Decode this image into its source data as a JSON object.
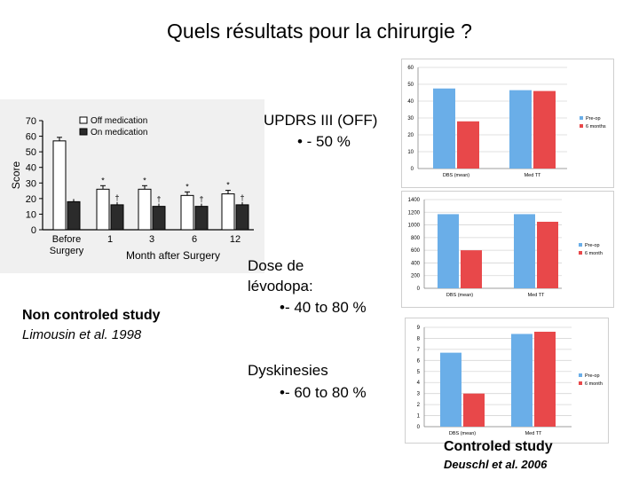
{
  "slide": {
    "title": "Quels résultats pour la chirurgie ?",
    "updrs_heading": "UPDRS III (OFF)",
    "updrs_value": "• - 50 %",
    "dose_heading": "Dose de lévodopa:",
    "dose_value": "•- 40 to 80 %",
    "dysk_heading": "Dyskinesies",
    "dysk_value": "•- 60 to 80 %",
    "noncontrolled_label": "Non controled study",
    "noncontrolled_ref": "Limousin et al. 1998",
    "controlled_label": "Controled study",
    "controlled_ref": "Deuschl et al. 2006"
  },
  "colors": {
    "off_bar": "#ffffff",
    "on_bar": "#2b2b2b",
    "preop": "#6aaee8",
    "postop": "#e8484a"
  },
  "chart_data": [
    {
      "type": "bar",
      "ylabel": "Score",
      "xlabel": "Month after Surgery",
      "categories": [
        "Before Surgery",
        "1",
        "3",
        "6",
        "12"
      ],
      "series": [
        {
          "name": "Off medication",
          "values": [
            57,
            26,
            26,
            22,
            23
          ]
        },
        {
          "name": "On medication",
          "values": [
            18,
            16,
            15,
            15,
            16
          ]
        }
      ],
      "annotations": {
        "off_marks": [
          "",
          "*",
          "*",
          "*",
          "*"
        ],
        "on_marks": [
          "",
          "†",
          "†",
          "†",
          "†"
        ]
      },
      "ylim": [
        0,
        70
      ],
      "yticks": [
        0,
        10,
        20,
        30,
        40,
        50,
        60,
        70
      ],
      "legend": "top-left",
      "grid": false
    },
    {
      "type": "bar",
      "categories": [
        "DBS (mean)",
        "Med TT"
      ],
      "series": [
        {
          "name": "Pre-op",
          "values": [
            47.5,
            46.5
          ]
        },
        {
          "name": "6 months",
          "values": [
            28,
            46
          ]
        }
      ],
      "ylim": [
        0,
        60
      ],
      "yticks": [
        0,
        10,
        20,
        30,
        40,
        50,
        60
      ],
      "legend": "right",
      "grid": true
    },
    {
      "type": "bar",
      "categories": [
        "DBS (mean)",
        "Med TT"
      ],
      "series": [
        {
          "name": "Pre-op",
          "values": [
            1170,
            1170
          ]
        },
        {
          "name": "6 month",
          "values": [
            600,
            1050
          ]
        }
      ],
      "ylim": [
        0,
        1400
      ],
      "yticks": [
        0,
        200,
        400,
        600,
        800,
        1000,
        1200,
        1400
      ],
      "legend": "right",
      "grid": true
    },
    {
      "type": "bar",
      "categories": [
        "DBS (mean)",
        "Med TT"
      ],
      "series": [
        {
          "name": "Pre-op",
          "values": [
            6.7,
            8.4
          ]
        },
        {
          "name": "6 month",
          "values": [
            3.0,
            8.6
          ]
        }
      ],
      "ylim": [
        0,
        9
      ],
      "yticks": [
        0,
        1,
        2,
        3,
        4,
        5,
        6,
        7,
        8,
        9
      ],
      "legend": "right",
      "grid": true
    }
  ]
}
